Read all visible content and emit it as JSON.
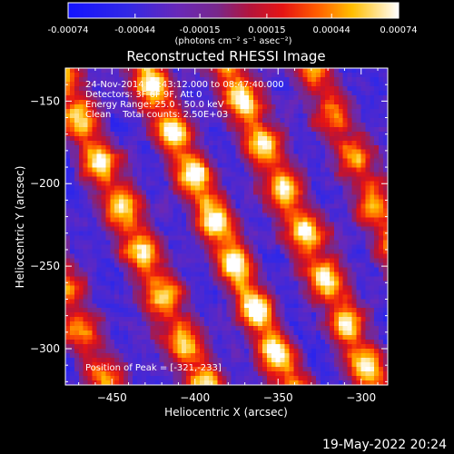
{
  "colorbar": {
    "tick_labels": [
      "-0.00074",
      "-0.00044",
      "-0.00015",
      "0.00015",
      "0.00044",
      "0.00074"
    ],
    "tick_values": [
      -0.00074,
      -0.00044,
      -0.00015,
      0.00015,
      0.00044,
      0.00074
    ],
    "range": [
      -0.00074,
      0.00074
    ],
    "units": "(photons cm⁻² s⁻¹ asec⁻²)"
  },
  "chart_data": {
    "type": "heatmap",
    "title": "Reconstructed RHESSI Image",
    "xlabel": "Heliocentric X (arcsec)",
    "ylabel": "Heliocentric Y (arcsec)",
    "xlim": [
      -478,
      -284
    ],
    "ylim": [
      -322,
      -130
    ],
    "xticks": [
      -450,
      -400,
      -350,
      -300
    ],
    "yticks": [
      -150,
      -200,
      -250,
      -300
    ],
    "colormap": "blue-purple-red-yellow-white",
    "peak": [
      -321,
      -233
    ],
    "info_lines": [
      "24-Nov-2014 08:43:12.000 to 08:47:40.000",
      "Detectors: 3F 6F 9F, Att 0",
      "Energy Range: 25.0 - 50.0 keV",
      "Clean    Total counts: 2.50E+03"
    ],
    "peak_label": "Position of Peak = [-321,-233]"
  },
  "footer_date": "19-May-2022 20:24"
}
